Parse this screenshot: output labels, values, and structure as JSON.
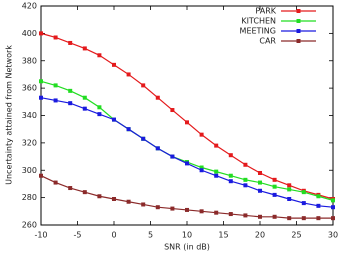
{
  "chart_data": {
    "type": "line",
    "xlabel": "SNR (in dB)",
    "ylabel": "Uncertainty attained from Network",
    "x": [
      -10,
      -8,
      -6,
      -4,
      -2,
      0,
      2,
      4,
      6,
      8,
      10,
      12,
      14,
      16,
      18,
      20,
      22,
      24,
      26,
      28,
      30
    ],
    "series": [
      {
        "name": "PARK",
        "color": "#e41a1c",
        "values": [
          400,
          397,
          393,
          389,
          384,
          377,
          370,
          362,
          353,
          344,
          335,
          326,
          318,
          311,
          304,
          298,
          293,
          289,
          285,
          282,
          279
        ]
      },
      {
        "name": "KITCHEN",
        "color": "#22dd22",
        "values": [
          365,
          362,
          358,
          353,
          346,
          337,
          330,
          323,
          316,
          310,
          306,
          302,
          299,
          296,
          293,
          291,
          288,
          286,
          284,
          281,
          278
        ]
      },
      {
        "name": "MEETING",
        "color": "#1a1adf",
        "values": [
          353,
          351,
          349,
          345,
          341,
          337,
          330,
          323,
          316,
          310,
          305,
          300,
          296,
          292,
          289,
          285,
          282,
          279,
          276,
          274,
          273
        ]
      },
      {
        "name": "CAR",
        "color": "#8b2a2a",
        "values": [
          296,
          291,
          287,
          284,
          281,
          279,
          277,
          275,
          273,
          272,
          271,
          270,
          269,
          268,
          267,
          266,
          266,
          265,
          265,
          265,
          265
        ]
      }
    ],
    "xlim": [
      -10,
      30
    ],
    "xticks": [
      -10,
      -5,
      0,
      5,
      10,
      15,
      20,
      25,
      30
    ],
    "ylim": [
      260,
      420
    ],
    "yticks": [
      260,
      280,
      300,
      320,
      340,
      360,
      380,
      400,
      420
    ],
    "legend": "top-right"
  }
}
